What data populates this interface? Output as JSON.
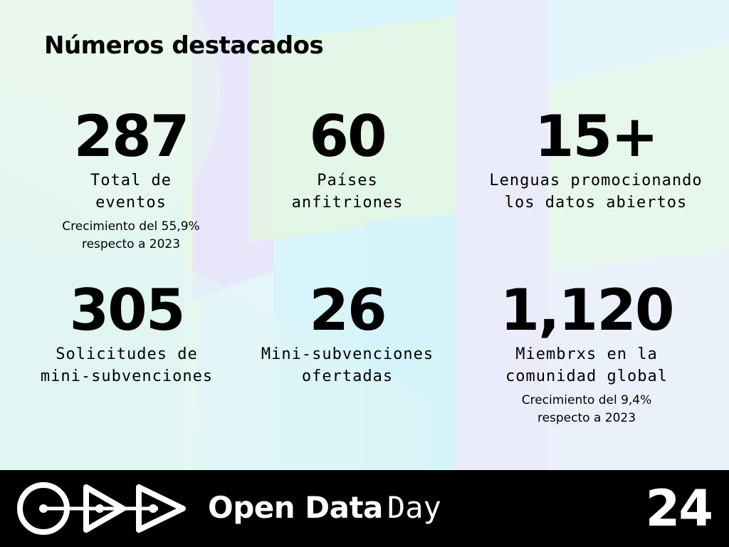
{
  "title": "Números destacados",
  "stats": [
    {
      "value": "287",
      "label": "Total de\neventos",
      "note": "Crecimiento del 55,9%\nrespecto a 2023"
    },
    {
      "value": "60",
      "label": "Países\nanfitriones",
      "note": ""
    },
    {
      "value": "15+",
      "label": "Lenguas promocionando\nlos datos abiertos",
      "note": ""
    },
    {
      "value": "305",
      "label": "Solicitudes de\nmini-subvenciones",
      "note": ""
    },
    {
      "value": "26",
      "label": "Mini-subvenciones\nofertadas",
      "note": ""
    },
    {
      "value": "1,120",
      "label": "Miembrxs en la\ncomunidad global",
      "note": "Crecimiento del 9,4%\nrespecto a 2023"
    }
  ],
  "footer": {
    "brand_bold": "Open Data",
    "brand_light": "Day",
    "year": "24",
    "logo_icon": "odd-logo-icon"
  },
  "colors": {
    "footer_bg": "#000000",
    "footer_text": "#ffffff",
    "bg_base": "#e6f6fb",
    "bg_lavender": "#ece9fb",
    "bg_green": "#eaf8e6",
    "bg_cyan": "#d6f4fb"
  }
}
